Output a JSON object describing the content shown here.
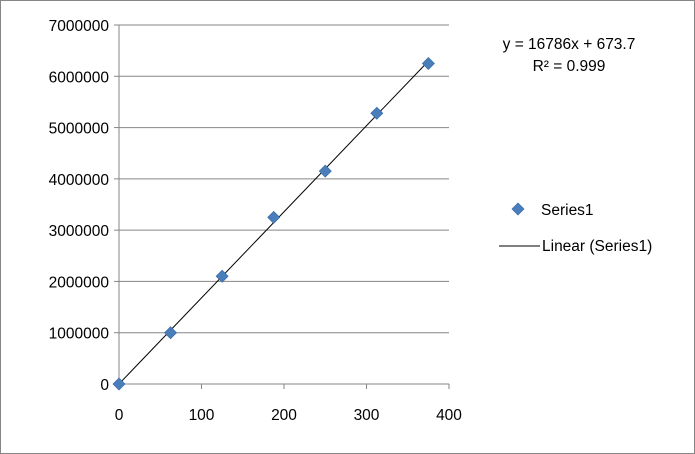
{
  "chart_data": {
    "type": "scatter",
    "title": "",
    "xlabel": "",
    "ylabel": "",
    "xlim": [
      0,
      400
    ],
    "ylim": [
      0,
      7000000
    ],
    "x_ticks": [
      0,
      100,
      200,
      300,
      400
    ],
    "y_ticks": [
      0,
      1000000,
      2000000,
      3000000,
      4000000,
      5000000,
      6000000,
      7000000
    ],
    "x_tick_labels": [
      "0",
      "100",
      "200",
      "300",
      "400"
    ],
    "y_tick_labels": [
      "0",
      "1000000",
      "2000000",
      "3000000",
      "4000000",
      "5000000",
      "6000000",
      "7000000"
    ],
    "grid": {
      "horizontal": true,
      "vertical": false
    },
    "legend_position": "right",
    "series": [
      {
        "name": "Series1",
        "marker": "diamond",
        "color": "#4a7ebb",
        "points": [
          {
            "x": 0,
            "y": 0
          },
          {
            "x": 62.5,
            "y": 1000000
          },
          {
            "x": 125,
            "y": 2100000
          },
          {
            "x": 187.5,
            "y": 3250000
          },
          {
            "x": 250,
            "y": 4150000
          },
          {
            "x": 312.5,
            "y": 5280000
          },
          {
            "x": 375,
            "y": 6250000
          }
        ]
      }
    ],
    "trendline": {
      "name": "Linear (Series1)",
      "type": "linear",
      "slope": 16786,
      "intercept": 673.7,
      "x_range": [
        0,
        375
      ],
      "color": "#000000"
    },
    "equation_text": "y = 16786x + 673.7",
    "r2_text": "R² = 0.999"
  }
}
